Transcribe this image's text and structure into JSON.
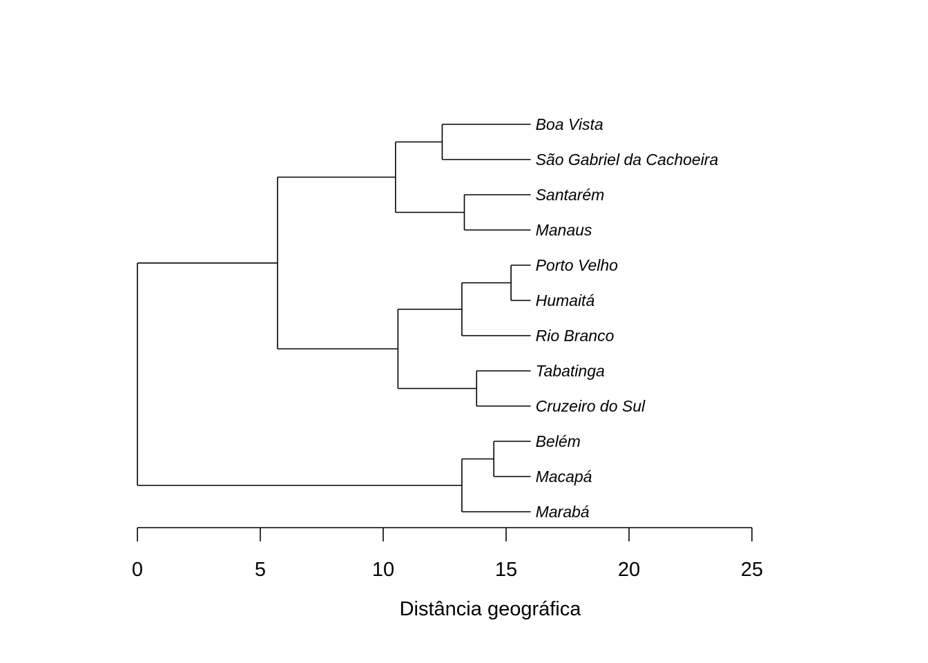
{
  "chart_data": {
    "type": "dendrogram",
    "title": "",
    "xlabel": "Distância geográfica",
    "xlim": [
      0,
      25
    ],
    "xticks": [
      0,
      5,
      10,
      15,
      20,
      25
    ],
    "xtick_labels": [
      "0",
      "5",
      "10",
      "15",
      "20",
      "25"
    ],
    "grid": false,
    "leaf_x": 16,
    "leaves": [
      "Boa Vista",
      "São Gabriel da Cachoeira",
      "Santarém",
      "Manaus",
      "Porto Velho",
      "Humaitá",
      "Rio Branco",
      "Tabatinga",
      "Cruzeiro do Sul",
      "Belém",
      "Macapá",
      "Marabá"
    ],
    "merges": [
      {
        "id": "m1",
        "a": "Boa Vista",
        "b": "São Gabriel da Cachoeira",
        "height": 12.4
      },
      {
        "id": "m2",
        "a": "Santarém",
        "b": "Manaus",
        "height": 13.3
      },
      {
        "id": "m3",
        "a": "m1",
        "b": "m2",
        "height": 10.5
      },
      {
        "id": "m4",
        "a": "Porto Velho",
        "b": "Humaitá",
        "height": 15.2
      },
      {
        "id": "m5",
        "a": "m4",
        "b": "Rio Branco",
        "height": 13.2
      },
      {
        "id": "m6",
        "a": "Tabatinga",
        "b": "Cruzeiro do Sul",
        "height": 13.8
      },
      {
        "id": "m7",
        "a": "m5",
        "b": "m6",
        "height": 10.6
      },
      {
        "id": "m8",
        "a": "m3",
        "b": "m7",
        "height": 5.7
      },
      {
        "id": "m9",
        "a": "Belém",
        "b": "Macapá",
        "height": 14.5
      },
      {
        "id": "m10",
        "a": "m9",
        "b": "Marabá",
        "height": 13.2
      },
      {
        "id": "m11",
        "a": "m8",
        "b": "m10",
        "height": 0
      }
    ]
  }
}
